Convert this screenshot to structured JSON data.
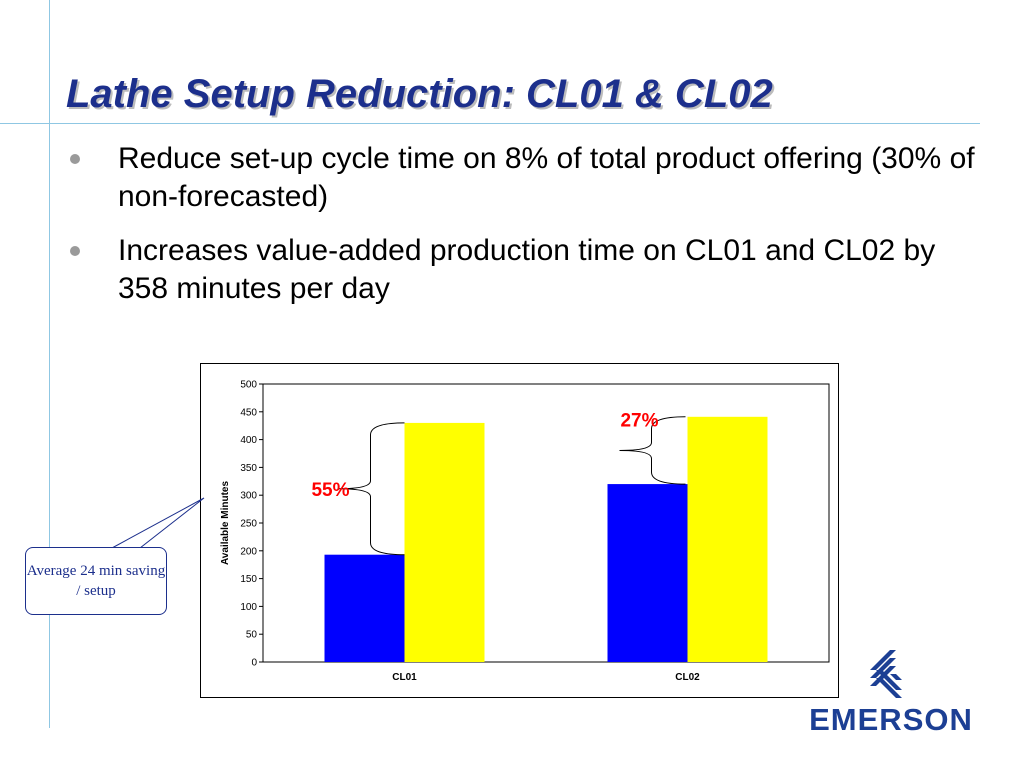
{
  "slide": {
    "title": "Lathe Setup Reduction: CL01 & CL02",
    "bullets": [
      "Reduce set-up cycle time on 8% of total product offering (30% of non-forecasted)",
      "Increases value-added production time on CL01 and CL02 by 358 minutes per day"
    ],
    "callout_text": "Average 24 min saving / setup",
    "logo_text": "EMERSON"
  },
  "colors": {
    "title": "#1c2f8c",
    "accent_line": "#8fc7e3",
    "bar_before": "#0000ff",
    "bar_after": "#ffff00",
    "annotation": "#ff0000"
  },
  "chart_data": {
    "type": "bar",
    "categories": [
      "CL01",
      "CL02"
    ],
    "series": [
      {
        "values": [
          193,
          320
        ]
      },
      {
        "values": [
          430,
          441
        ]
      }
    ],
    "ylabel": "Available Minutes",
    "xlabel": "",
    "ylim": [
      0,
      500
    ],
    "yticks": [
      0,
      50,
      100,
      150,
      200,
      250,
      300,
      350,
      400,
      450,
      500
    ],
    "annotations": [
      "55%",
      "27%"
    ],
    "grid": false,
    "legend": "none"
  }
}
